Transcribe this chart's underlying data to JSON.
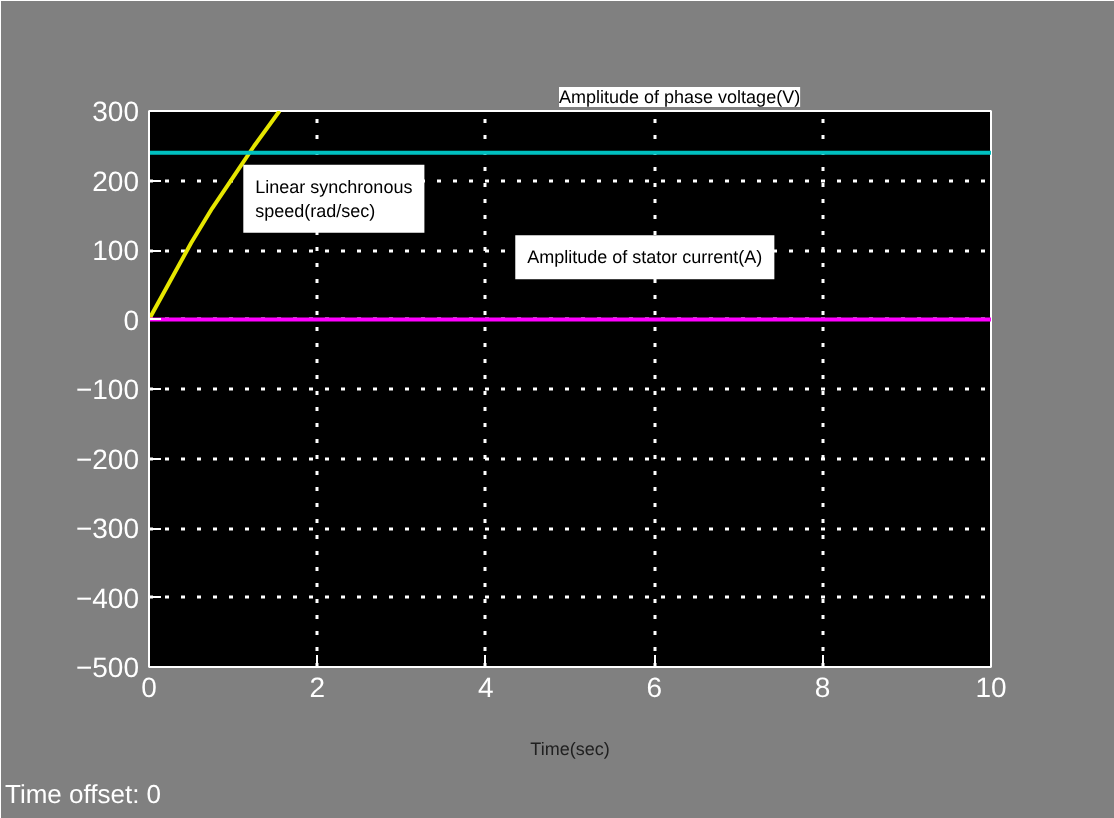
{
  "chart_data": {
    "type": "line",
    "xlabel": "Time(sec)",
    "annotations": [
      "Time offset:  0"
    ],
    "series": [
      {
        "name": "Linear synchronous speed(rad/sec)",
        "color": "#e6e600",
        "x": [
          0,
          0.25,
          0.5,
          0.75,
          1.0,
          1.25,
          1.55
        ],
        "values": [
          0,
          55,
          110,
          160,
          205,
          250,
          300
        ]
      },
      {
        "name": "Amplitude of phase voltage(V)",
        "color": "#00c0c0",
        "x": [
          0,
          10
        ],
        "values": [
          240,
          240
        ]
      },
      {
        "name": "Amplitude of stator current(A)",
        "color": "#ff00ff",
        "x": [
          0,
          10
        ],
        "values": [
          0,
          0
        ]
      }
    ],
    "xlim": [
      0,
      10
    ],
    "ylim": [
      -500,
      300
    ],
    "xticks": [
      0,
      2,
      4,
      6,
      8,
      10
    ],
    "yticks": [
      -500,
      -400,
      -300,
      -200,
      -100,
      0,
      100,
      200,
      300
    ],
    "grid": true,
    "marker": "none",
    "line_style": "solid"
  }
}
